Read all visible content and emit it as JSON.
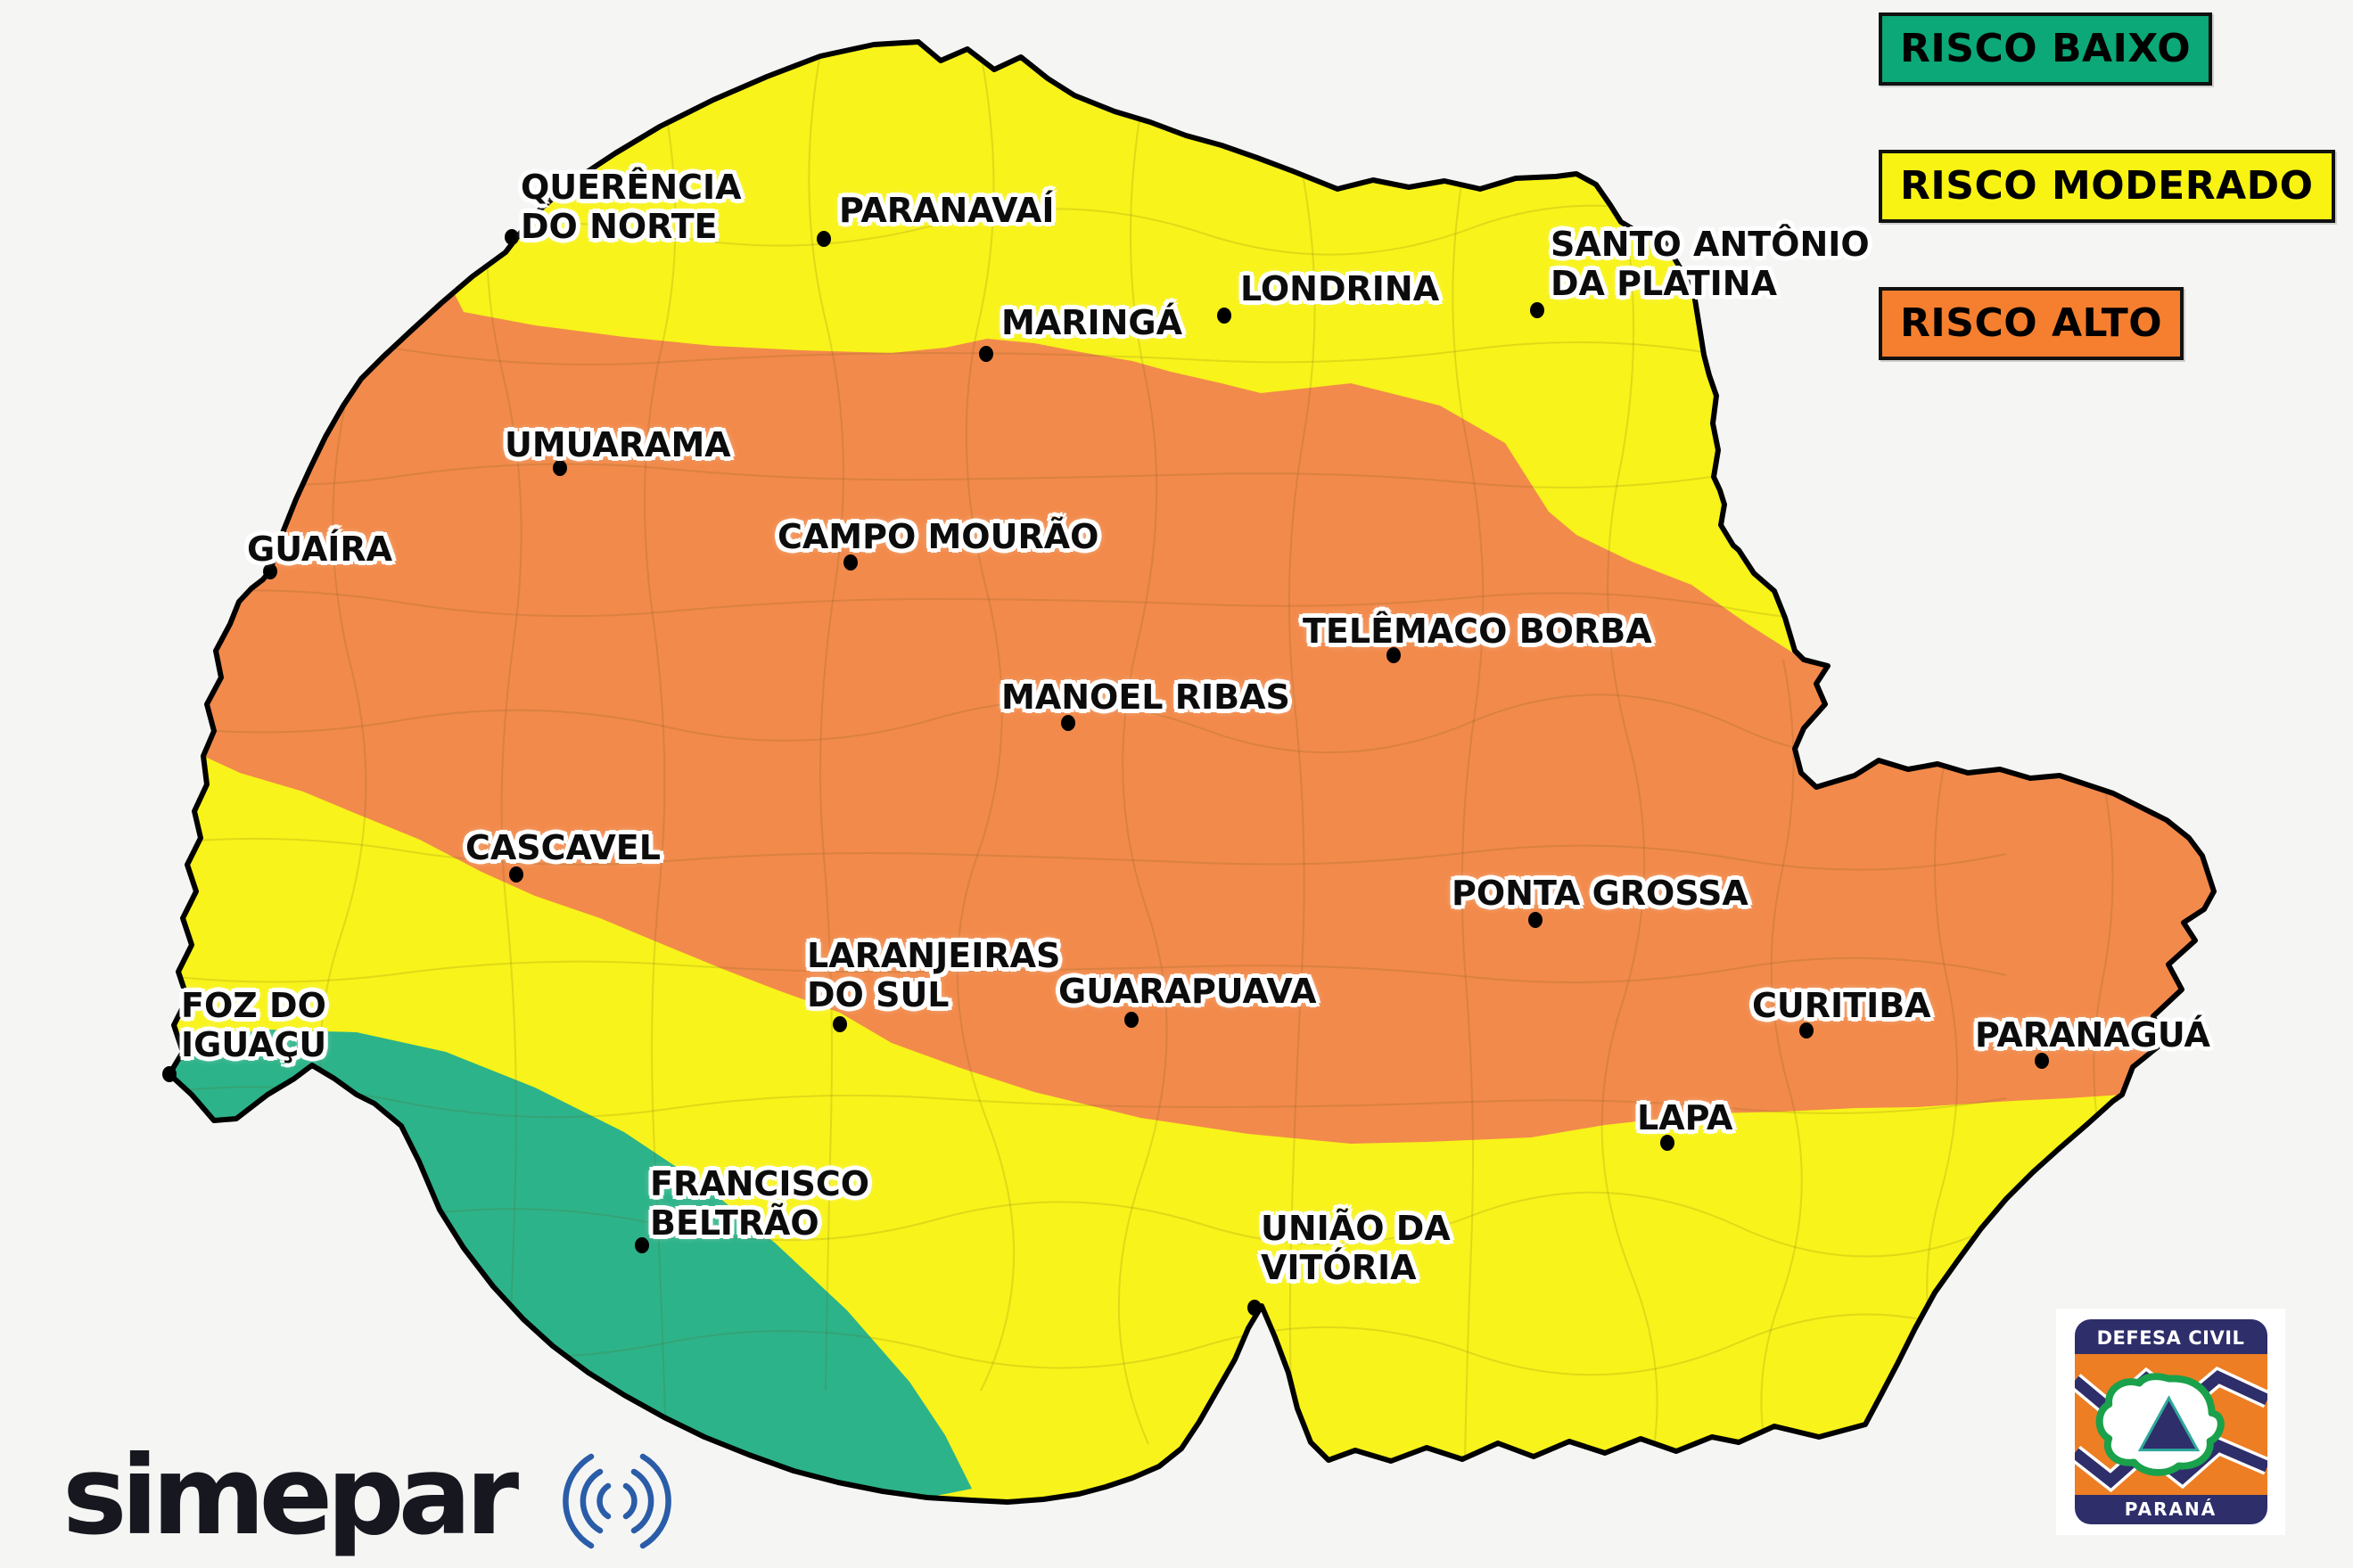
{
  "colors": {
    "background": "#f5f5f4",
    "state_border": "#000000",
    "risk_low_map": "#2db389",
    "risk_moderate_map": "#f8f31a",
    "risk_high_map": "#f28a4b",
    "legend_low": "#0ca877",
    "legend_moderate": "#f8f312",
    "legend_high": "#f57f2e",
    "city_dot": "#000000",
    "simepar_blue": "#2a5ca8",
    "defesa_navy": "#2e2e6b",
    "defesa_orange": "#ee7e23",
    "defesa_green": "#1aa14b"
  },
  "legend": {
    "items": [
      {
        "id": "baixo",
        "label": "RISCO BAIXO",
        "color": "#0ca877"
      },
      {
        "id": "moderado",
        "label": "RISCO MODERADO",
        "color": "#f8f312"
      },
      {
        "id": "alto",
        "label": "RISCO ALTO",
        "color": "#f57f2e"
      }
    ]
  },
  "cities": [
    {
      "name": "Querência do Norte",
      "lines": [
        "QUERÊNCIA",
        "DO NORTE"
      ],
      "dot": [
        574,
        266
      ],
      "label": [
        584,
        188
      ]
    },
    {
      "name": "Paranavaí",
      "lines": [
        "PARANAVAÍ"
      ],
      "dot": [
        924,
        268
      ],
      "label": [
        941,
        214
      ]
    },
    {
      "name": "Londrina",
      "lines": [
        "LONDRINA"
      ],
      "dot": [
        1373,
        354
      ],
      "label": [
        1391,
        302
      ]
    },
    {
      "name": "Santo Antônio da Platina",
      "lines": [
        "SANTO ANTÔNIO",
        "DA PLATINA"
      ],
      "dot": [
        1724,
        348
      ],
      "label": [
        1739,
        252
      ]
    },
    {
      "name": "Maringá",
      "lines": [
        "MARINGÁ"
      ],
      "dot": [
        1106,
        397
      ],
      "label": [
        1123,
        340
      ]
    },
    {
      "name": "Umuarama",
      "lines": [
        "UMUARAMA"
      ],
      "dot": [
        628,
        525
      ],
      "label": [
        566,
        477
      ]
    },
    {
      "name": "Guaíra",
      "lines": [
        "GUAÍRA"
      ],
      "dot": [
        303,
        641
      ],
      "label": [
        277,
        594
      ]
    },
    {
      "name": "Campo Mourão",
      "lines": [
        "CAMPO MOURÃO"
      ],
      "dot": [
        954,
        631
      ],
      "label": [
        872,
        580
      ]
    },
    {
      "name": "Telêmaco Borba",
      "lines": [
        "TELÊMACO BORBA"
      ],
      "dot": [
        1563,
        735
      ],
      "label": [
        1461,
        686
      ]
    },
    {
      "name": "Manoel Ribas",
      "lines": [
        "MANOEL RIBAS"
      ],
      "dot": [
        1198,
        811
      ],
      "label": [
        1123,
        760
      ]
    },
    {
      "name": "Cascavel",
      "lines": [
        "CASCAVEL"
      ],
      "dot": [
        579,
        981
      ],
      "label": [
        522,
        929
      ]
    },
    {
      "name": "Ponta Grossa",
      "lines": [
        "PONTA GROSSA"
      ],
      "dot": [
        1722,
        1032
      ],
      "label": [
        1628,
        980
      ]
    },
    {
      "name": "Laranjeiras do Sul",
      "lines": [
        "LARANJEIRAS",
        "DO SUL"
      ],
      "dot": [
        942,
        1149
      ],
      "label": [
        905,
        1050
      ]
    },
    {
      "name": "Guarapuava",
      "lines": [
        "GUARAPUAVA"
      ],
      "dot": [
        1269,
        1144
      ],
      "label": [
        1187,
        1090
      ]
    },
    {
      "name": "Curitiba",
      "lines": [
        "CURITIBA"
      ],
      "dot": [
        2026,
        1156
      ],
      "label": [
        1965,
        1106
      ]
    },
    {
      "name": "Paranaguá",
      "lines": [
        "PARANAGUÁ"
      ],
      "dot": [
        2290,
        1190
      ],
      "label": [
        2215,
        1139
      ]
    },
    {
      "name": "Foz do Iguaçu",
      "lines": [
        "FOZ DO",
        "IGUAÇU"
      ],
      "dot": [
        190,
        1205
      ],
      "label": [
        203,
        1106
      ]
    },
    {
      "name": "Lapa",
      "lines": [
        "LAPA"
      ],
      "dot": [
        1870,
        1282
      ],
      "label": [
        1836,
        1232
      ]
    },
    {
      "name": "Francisco Beltrão",
      "lines": [
        "FRANCISCO",
        "BELTRÃO"
      ],
      "dot": [
        720,
        1397
      ],
      "label": [
        729,
        1306
      ]
    },
    {
      "name": "União da Vitória",
      "lines": [
        "UNIÃO DA",
        "VITÓRIA"
      ],
      "dot": [
        1407,
        1467
      ],
      "label": [
        1414,
        1356
      ]
    }
  ],
  "logos": {
    "simepar": {
      "text": "simepar"
    },
    "defesa_civil": {
      "top": "DEFESA CIVIL",
      "bottom": "PARANÁ"
    }
  }
}
